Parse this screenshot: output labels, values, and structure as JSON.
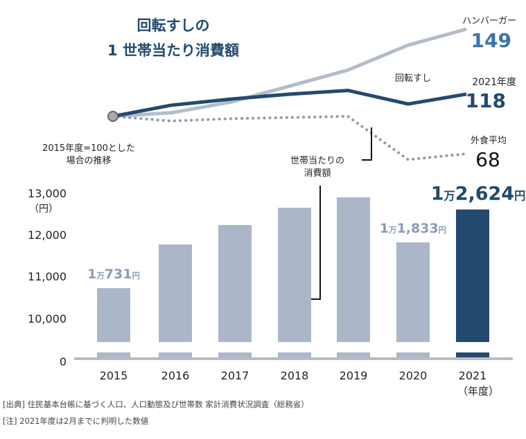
{
  "chart_data": [
    {
      "type": "line",
      "title": "回転すしの\n1世帯当たり消費額",
      "title_lines": [
        "回転すしの",
        "1 世帯当たり消費額"
      ],
      "subtitle_lines": [
        "2015年度=100とした",
        "場合の推移"
      ],
      "x": [
        2015,
        2016,
        2017,
        2018,
        2019,
        2020,
        2021
      ],
      "series": [
        {
          "name": "ハンバーガー",
          "values": [
            100,
            102,
            108,
            117,
            126,
            140,
            149
          ],
          "end_label": "149",
          "color": "#b4bccb",
          "style": "solid"
        },
        {
          "name": "回転すし",
          "values": [
            100,
            109,
            114,
            118,
            121,
            110,
            118
          ],
          "end_label": "118",
          "end_caption": "2021年度",
          "color": "#234a6e",
          "style": "solid"
        },
        {
          "name": "外食平均",
          "values": [
            100,
            96,
            98,
            99,
            100,
            63,
            68
          ],
          "end_label": "68",
          "color": "#8c99ab",
          "style": "dotted"
        }
      ]
    },
    {
      "type": "bar",
      "categories": [
        "2015",
        "2016",
        "2017",
        "2018",
        "2019",
        "2020",
        "2021"
      ],
      "values": [
        10731,
        11783,
        12250,
        12667,
        12917,
        11833,
        12624
      ],
      "ylabel": "（円）",
      "xlabel": "（年度）",
      "yticks": [
        "0",
        "10,000",
        "11,000",
        "12,000",
        "13,000"
      ],
      "ylim": [
        0,
        13000
      ],
      "axis_break": true,
      "annotation": [
        "世帯当たりの",
        "消費額"
      ],
      "data_labels": {
        "0": [
          "1",
          "万",
          "731",
          "円"
        ],
        "5": [
          "1",
          "万",
          "1,833",
          "円"
        ],
        "6": [
          "1",
          "万",
          "2,624",
          "円"
        ]
      },
      "colors": {
        "default": "#abb6c8",
        "highlight": "#234a6e",
        "label_default": "#8c9bb3"
      }
    }
  ],
  "footnotes": [
    "[出典] 住民基本台帳に基づく人口、人口動態及び世帯数  家計消費状況調査（総務省）",
    "[注] 2021年度は2月までに判明した数値"
  ]
}
